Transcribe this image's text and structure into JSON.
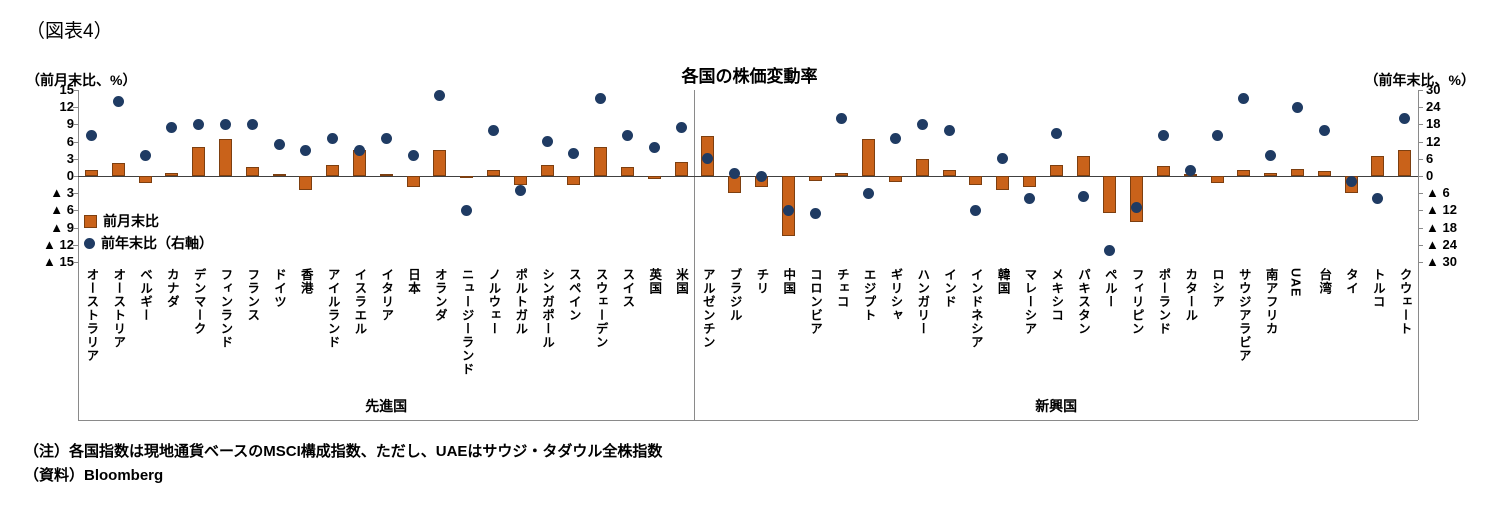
{
  "figure_label": "（図表4）",
  "chart_data": {
    "type": "bar",
    "combo": "bar series on left axis + dot (scatter) series on right axis",
    "title": "各国の株価変動率",
    "left_axis": {
      "label": "（前月末比、%）",
      "min": -15,
      "max": 15,
      "ticks": [
        15,
        12,
        9,
        6,
        3,
        0,
        -3,
        -6,
        -9,
        -12,
        -15
      ]
    },
    "right_axis": {
      "label": "（前年末比、%）",
      "min": -30,
      "max": 30,
      "ticks": [
        30,
        24,
        18,
        12,
        6,
        0,
        -6,
        -12,
        -18,
        -24,
        -30
      ]
    },
    "negative_tick_prefix": "▲",
    "grid": "off",
    "legend_position": "inside-left",
    "legend": [
      {
        "label": "前月末比",
        "marker": "bar",
        "color": "#C9621A"
      },
      {
        "label": "前年末比（右軸）",
        "marker": "dot",
        "color": "#1F3B63"
      }
    ],
    "groups": [
      {
        "label": "先進国",
        "count": 23
      },
      {
        "label": "新興国",
        "count": 27
      }
    ],
    "categories": [
      "オーストラリア",
      "オーストリア",
      "ベルギー",
      "カナダ",
      "デンマーク",
      "フィンランド",
      "フランス",
      "ドイツ",
      "香港",
      "アイルランド",
      "イスラエル",
      "イタリア",
      "日本",
      "オランダ",
      "ニュージーランド",
      "ノルウェー",
      "ポルトガル",
      "シンガポール",
      "スペイン",
      "スウェーデン",
      "スイス",
      "英国",
      "米国",
      "アルゼンチン",
      "ブラジル",
      "チリ",
      "中国",
      "コロンビア",
      "チェコ",
      "エジプト",
      "ギリシャ",
      "ハンガリー",
      "インド",
      "インドネシア",
      "韓国",
      "マレーシア",
      "メキシコ",
      "パキスタン",
      "ペルー",
      "フィリピン",
      "ポーランド",
      "カタール",
      "ロシア",
      "サウジアラビア",
      "南アフリカ",
      "UAE",
      "台湾",
      "タイ",
      "トルコ",
      "クウェート"
    ],
    "series": [
      {
        "name": "前月末比",
        "axis": "left",
        "type": "bar",
        "values": [
          1.0,
          2.2,
          -1.2,
          0.5,
          5.0,
          6.5,
          1.5,
          0.3,
          -2.5,
          2.0,
          4.5,
          0.3,
          -2.0,
          4.5,
          -0.3,
          1.0,
          -1.5,
          2.0,
          -1.5,
          5.0,
          1.5,
          -0.5,
          2.5,
          7.0,
          -3.0,
          -2.0,
          -10.5,
          -0.8,
          0.5,
          6.5,
          -1.0,
          3.0,
          1.0,
          -1.5,
          -2.5,
          -2.0,
          2.0,
          3.5,
          -6.5,
          -8.0,
          1.8,
          0.3,
          -1.2,
          1.0,
          0.5,
          1.2,
          0.8,
          -3.0,
          3.5,
          4.5
        ]
      },
      {
        "name": "前年末比（右軸）",
        "axis": "right",
        "type": "scatter",
        "values": [
          14,
          26,
          7,
          17,
          18,
          18,
          18,
          11,
          9,
          13,
          9,
          13,
          7,
          28,
          -12,
          16,
          -5,
          12,
          8,
          27,
          14,
          10,
          17,
          6,
          1,
          0,
          -12,
          -13,
          20,
          -6,
          13,
          18,
          16,
          -12,
          6,
          -8,
          15,
          -7,
          -26,
          -11,
          14,
          2,
          14,
          27,
          7,
          24,
          16,
          -2,
          -8,
          20
        ]
      }
    ]
  },
  "notes": {
    "note": "（注）各国指数は現地通貨ベースのMSCI構成指数、ただし、UAEはサウジ・タダウル全株指数",
    "source": "（資料）Bloomberg"
  }
}
